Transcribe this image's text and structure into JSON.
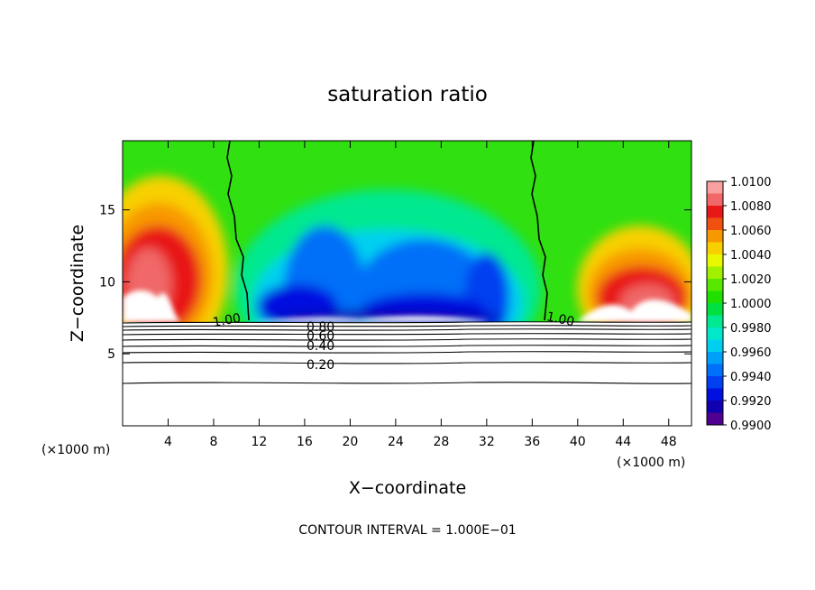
{
  "chart_data": {
    "type": "heatmap",
    "title": "saturation ratio",
    "xlabel": "X−coordinate",
    "ylabel": "Z−coordinate",
    "x_unit_left": "(×1000 m)",
    "x_unit_right": "(×1000 m)",
    "xlim": [
      0,
      50
    ],
    "ylim": [
      0,
      19.8
    ],
    "x_ticks": [
      4,
      8,
      12,
      16,
      20,
      24,
      28,
      32,
      36,
      40,
      44,
      48
    ],
    "y_ticks": [
      5,
      10,
      15
    ],
    "footer": "CONTOUR INTERVAL = 1.000E−01",
    "colorbar": {
      "range": [
        0.99,
        1.01
      ],
      "labels": [
        "1.0100",
        "1.0080",
        "1.0060",
        "1.0040",
        "1.0020",
        "1.0000",
        "0.9980",
        "0.9960",
        "0.9940",
        "0.9920",
        "0.9900"
      ],
      "colors": [
        "#f8a0a0",
        "#f06868",
        "#e81818",
        "#f05010",
        "#f89800",
        "#f8d000",
        "#e8f800",
        "#a0f000",
        "#58e800",
        "#20e000",
        "#00e040",
        "#00e890",
        "#00e8c8",
        "#00d0f0",
        "#00a0f8",
        "#0070f8",
        "#0040f0",
        "#0010e0",
        "#1000b0",
        "#500090"
      ]
    },
    "contours": [
      {
        "label": "1.00"
      },
      {
        "label": "1.00"
      },
      {
        "label": "0.80"
      },
      {
        "label": "0.60"
      },
      {
        "label": "0.40"
      },
      {
        "label": "0.20"
      }
    ]
  }
}
